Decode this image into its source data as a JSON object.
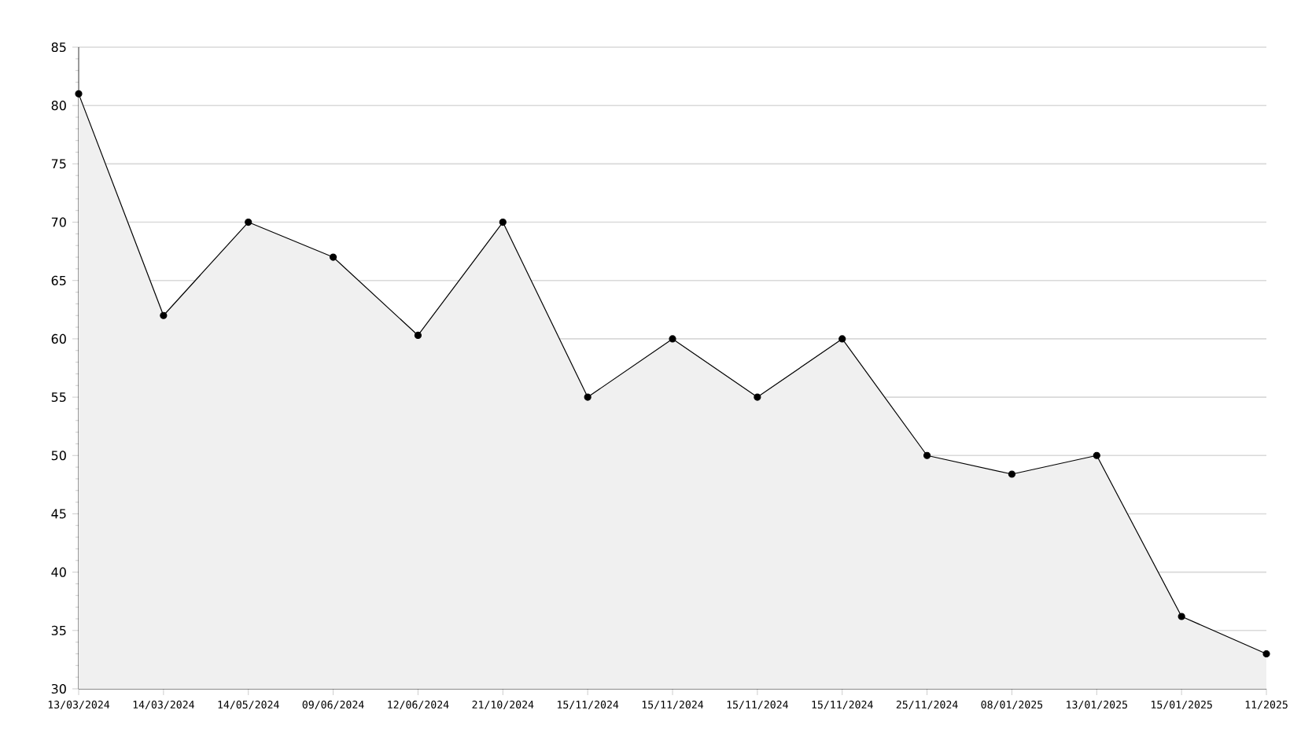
{
  "chart_data": {
    "type": "area",
    "categories": [
      "13/03/2024",
      "14/03/2024",
      "14/05/2024",
      "09/06/2024",
      "12/06/2024",
      "21/10/2024",
      "15/11/2024",
      "15/11/2024",
      "15/11/2024",
      "15/11/2024",
      "25/11/2024",
      "08/01/2025",
      "13/01/2025",
      "15/01/2025",
      "11/2025"
    ],
    "series": [
      {
        "color": "#000000",
        "values": [
          81,
          62,
          70,
          67,
          60.3,
          70,
          55,
          60,
          55,
          60,
          50,
          48.4,
          50,
          36.2,
          33
        ]
      }
    ],
    "ylim": [
      30,
      85
    ],
    "yticks": [
      30,
      35,
      40,
      45,
      50,
      55,
      60,
      65,
      70,
      75,
      80,
      85
    ],
    "grid": "y",
    "marker": "circle"
  }
}
